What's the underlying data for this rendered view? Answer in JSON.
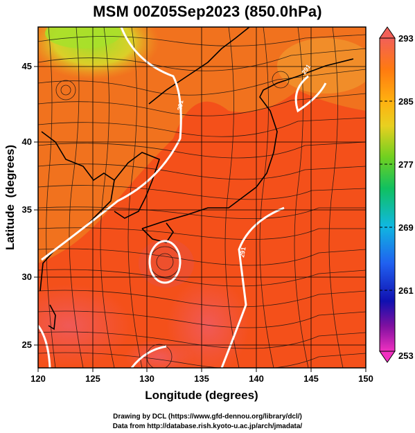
{
  "header": {
    "title": "MSM 00Z05Sep2023 (850.0hPa)"
  },
  "map": {
    "xaxis": {
      "label": "Longitude (degrees)",
      "ticks": [
        "120",
        "125",
        "130",
        "135",
        "140",
        "145",
        "150"
      ]
    },
    "yaxis": {
      "label": "Latitude  (degrees)",
      "ticks": [
        "25",
        "30",
        "35",
        "40",
        "45"
      ]
    },
    "lon_range": [
      120,
      150
    ],
    "lat_range": [
      22.4,
      47.6
    ],
    "contour_labels": [
      "291",
      "291",
      "291"
    ]
  },
  "colorbar": {
    "ticks": [
      "293",
      "285",
      "277",
      "269",
      "261",
      "253"
    ],
    "range": [
      253,
      293
    ]
  },
  "footer": {
    "line1": "Drawing by DCL (https://www.gfd-dennou.org/library/dcl/)",
    "line2": "Data from http://database.rish.kyoto-u.ac.jp/arch/jmadata/"
  }
}
